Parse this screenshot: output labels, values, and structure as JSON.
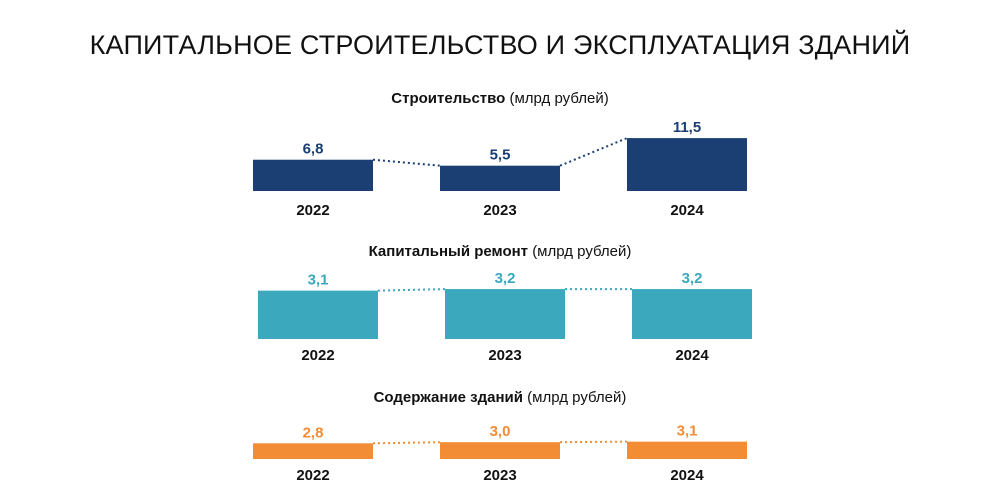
{
  "title": "КАПИТАЛЬНОЕ СТРОИТЕЛЬСТВО И ЭКСПЛУАТАЦИЯ ЗДАНИЙ",
  "chart_data": [
    {
      "type": "bar",
      "title_bold": "Строительство",
      "title_unit": "(млрд рублей)",
      "categories": [
        "2022",
        "2023",
        "2024"
      ],
      "values": [
        6.8,
        5.5,
        11.5
      ],
      "labels": [
        "6,8",
        "5,5",
        "11,5"
      ],
      "color": "#1b3f72",
      "connectors": "dotted",
      "grid": false
    },
    {
      "type": "bar",
      "title_bold": "Капитальный ремонт",
      "title_unit": "(млрд рублей)",
      "categories": [
        "2022",
        "2023",
        "2024"
      ],
      "values": [
        3.1,
        3.2,
        3.2
      ],
      "labels": [
        "3,1",
        "3,2",
        "3,2"
      ],
      "color": "#3ba8bd",
      "connectors": "dotted",
      "grid": false
    },
    {
      "type": "bar",
      "title_bold": "Содержание зданий",
      "title_unit": "(млрд рублей)",
      "categories": [
        "2022",
        "2023",
        "2024"
      ],
      "values": [
        2.8,
        3.0,
        3.1
      ],
      "labels": [
        "2,8",
        "3,0",
        "3,1"
      ],
      "color": "#f28c35",
      "connectors": "dotted",
      "grid": false
    }
  ]
}
